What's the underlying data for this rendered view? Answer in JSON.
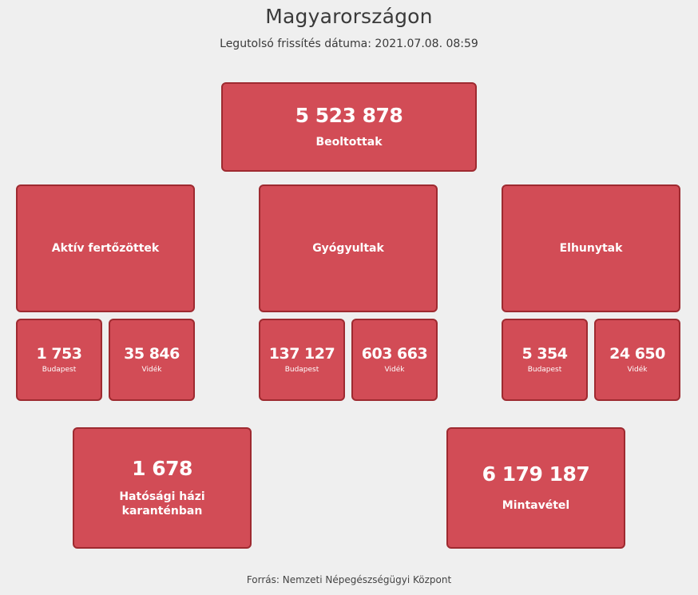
{
  "header": {
    "title": "Magyarországon",
    "updated": "Legutolsó frissítés dátuma: 2021.07.08. 08:59"
  },
  "vaccinated": {
    "value": "5 523 878",
    "label": "Beoltottak"
  },
  "groups": [
    {
      "label": "Aktív fertőzöttek",
      "budapest": {
        "value": "1 753",
        "label": "Budapest"
      },
      "countryside": {
        "value": "35 846",
        "label": "Vidék"
      }
    },
    {
      "label": "Gyógyultak",
      "budapest": {
        "value": "137 127",
        "label": "Budapest"
      },
      "countryside": {
        "value": "603 663",
        "label": "Vidék"
      }
    },
    {
      "label": "Elhunytak",
      "budapest": {
        "value": "5 354",
        "label": "Budapest"
      },
      "countryside": {
        "value": "24 650",
        "label": "Vidék"
      }
    }
  ],
  "quarantine": {
    "value": "1 678",
    "label": "Hatósági házi karanténban"
  },
  "sampling": {
    "value": "6 179 187",
    "label": "Mintavétel"
  },
  "footer": {
    "source": "Forrás: Nemzeti Népegészségügyi Központ"
  }
}
